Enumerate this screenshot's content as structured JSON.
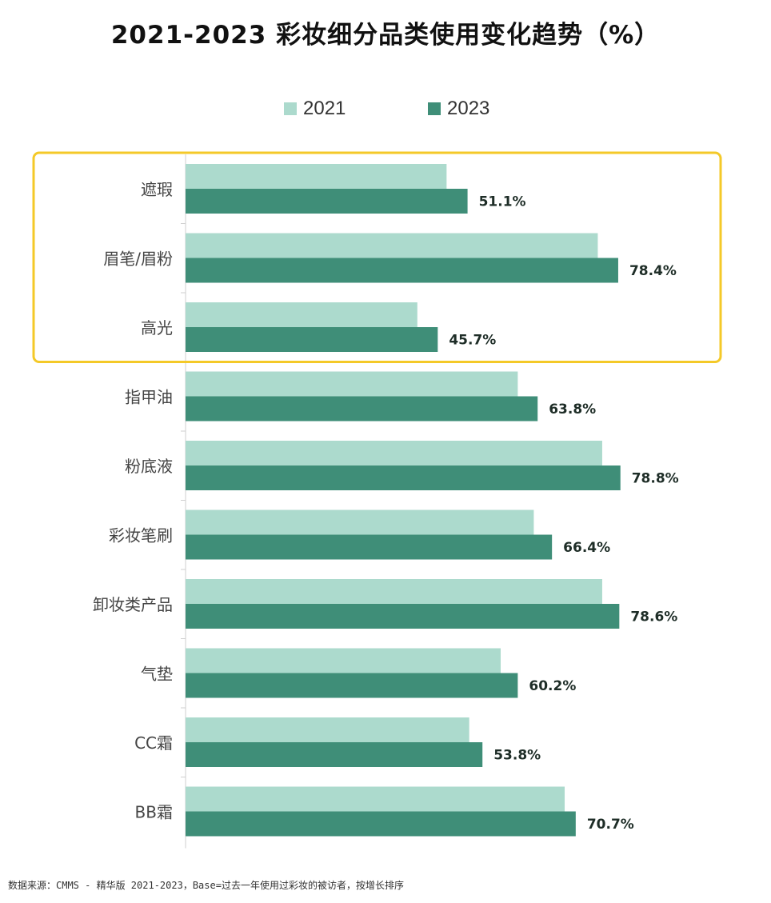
{
  "title": "2021-2023 彩妆细分品类使用变化趋势（%）",
  "legend": [
    {
      "label": "2021",
      "color": "#acdacd"
    },
    {
      "label": "2023",
      "color": "#3f8e78"
    }
  ],
  "highlight_color": "#f4c928",
  "footer": "数据来源：CMMS - 精华版 2021-2023，Base=过去一年使用过彩妆的被访者，按增长排序",
  "chart_data": {
    "type": "bar",
    "orientation": "horizontal",
    "categories": [
      "遮瑕",
      "眉笔/眉粉",
      "高光",
      "指甲油",
      "粉底液",
      "彩妆笔刷",
      "卸妆类产品",
      "气垫",
      "CC霜",
      "BB霜"
    ],
    "series": [
      {
        "name": "2021",
        "values": [
          47.3,
          74.7,
          42.0,
          60.2,
          75.5,
          63.1,
          75.5,
          57.1,
          51.4,
          68.7
        ],
        "show_labels": false
      },
      {
        "name": "2023",
        "values": [
          51.1,
          78.4,
          45.7,
          63.8,
          78.8,
          66.4,
          78.6,
          60.2,
          53.8,
          70.7
        ],
        "value_labels": [
          "51.1%",
          "78.4%",
          "45.7%",
          "63.8%",
          "78.8%",
          "66.4%",
          "78.6%",
          "60.2%",
          "53.8%",
          "70.7%"
        ],
        "show_labels": true
      }
    ],
    "xlim": [
      0,
      100
    ],
    "grid": false,
    "highlighted_categories": [
      "遮瑕",
      "眉笔/眉粉",
      "高光"
    ]
  }
}
